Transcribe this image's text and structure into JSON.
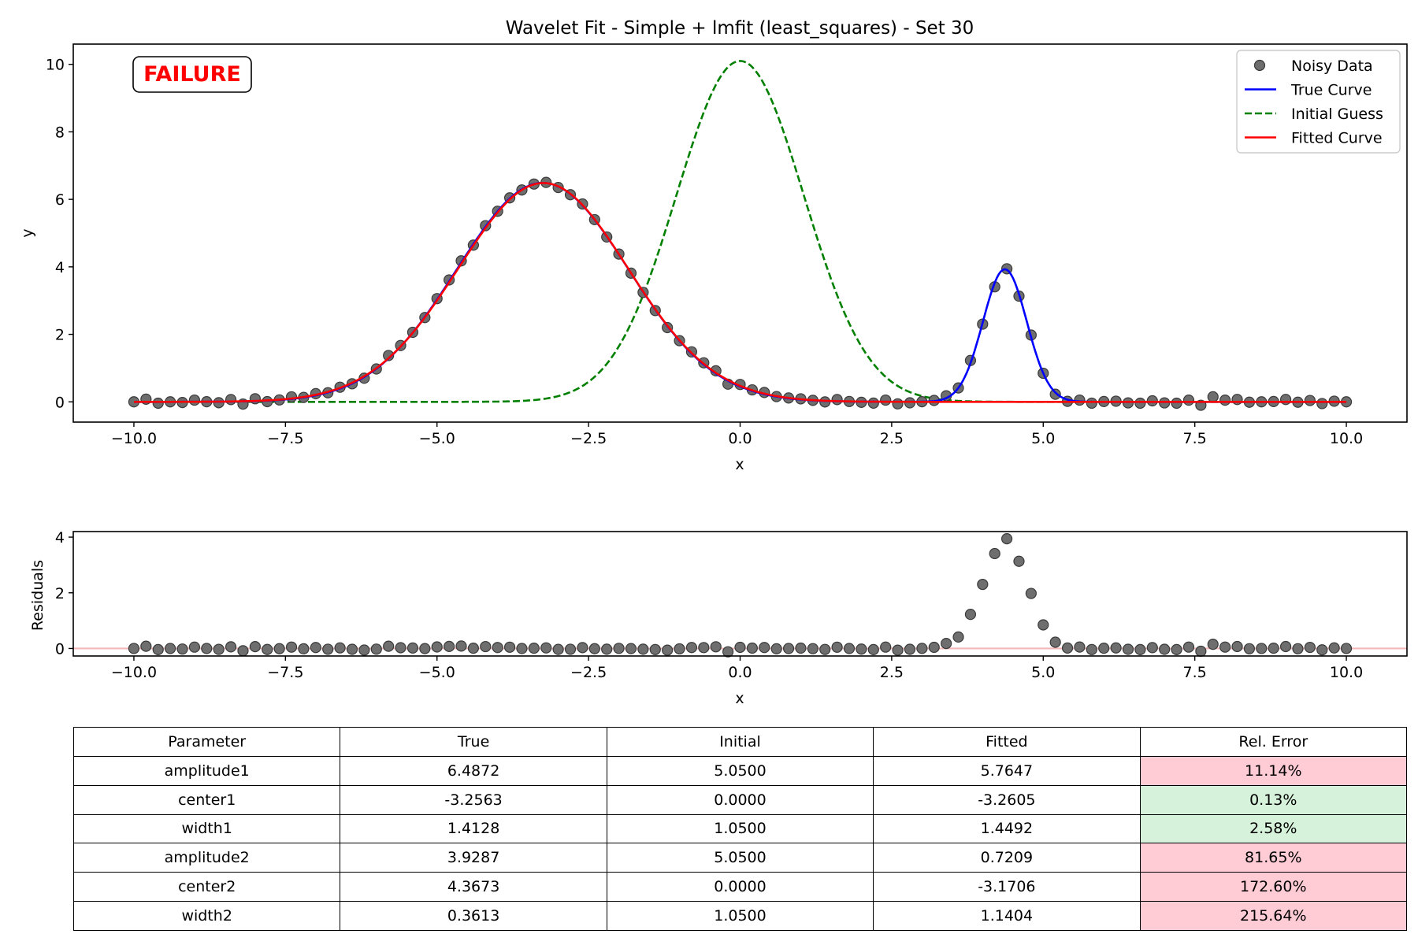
{
  "chart_data": [
    {
      "type": "scatter",
      "title": "Wavelet Fit - Simple + lmfit (least_squares) - Set 30",
      "xlabel": "x",
      "ylabel": "y",
      "xlim": [
        -11.0,
        11.0
      ],
      "ylim": [
        -0.6,
        10.6
      ],
      "xticks": [
        -10.0,
        -7.5,
        -5.0,
        -2.5,
        0.0,
        2.5,
        5.0,
        7.5,
        10.0
      ],
      "xtick_labels": [
        "−10.0",
        "−7.5",
        "−5.0",
        "−2.5",
        "0.0",
        "2.5",
        "5.0",
        "7.5",
        "10.0"
      ],
      "yticks": [
        0,
        2,
        4,
        6,
        8,
        10
      ],
      "ytick_labels": [
        "0",
        "2",
        "4",
        "6",
        "8",
        "10"
      ],
      "legend_position": "top-right",
      "status_badge": "FAILURE",
      "status_color": "#ff0000",
      "series": [
        {
          "name": "Noisy Data",
          "kind": "markers",
          "color": "#6e6e6e",
          "x_range": [
            -10.0,
            10.0
          ],
          "n_points": 101,
          "noise": [
            0.0,
            0.08,
            -0.04,
            0.0,
            -0.02,
            0.05,
            0.0,
            -0.03,
            0.06,
            -0.08,
            0.07,
            -0.03,
            0.0,
            0.06,
            0.0,
            0.05,
            -0.01,
            0.04,
            -0.01,
            -0.04,
            -0.01,
            0.09,
            0.03,
            0.01,
            -0.02,
            0.03,
            0.04,
            0.05,
            -0.03,
            0.03,
            0.0,
            0.02,
            -0.02,
            0.0,
            0.02,
            -0.03,
            -0.02,
            0.04,
            0.0,
            -0.02,
            0.01,
            0.0,
            -0.02,
            -0.03,
            -0.05,
            0.0,
            0.05,
            0.05,
            0.08,
            -0.1,
            0.06,
            0.03,
            0.05,
            0.0,
            0.01,
            0.02,
            0.0,
            -0.03,
            0.05,
            0.0,
            -0.02,
            -0.04,
            0.05,
            -0.06,
            -0.03,
            0.0,
            0.02,
            0.07,
            0.0,
            0.08,
            -0.04,
            -0.12,
            0.03,
            -0.06,
            0.06,
            0.0,
            -0.05,
            -0.05,
            0.04,
            -0.04,
            0.01,
            0.02,
            -0.03,
            -0.04,
            0.03,
            -0.03,
            -0.04,
            0.05,
            -0.1,
            0.15,
            0.05,
            0.07,
            -0.01,
            0.0,
            0.01,
            0.07,
            -0.01,
            0.04,
            -0.05,
            0.02,
            0.0
          ]
        },
        {
          "name": "True Curve",
          "kind": "line",
          "color": "#0000ff",
          "dash": "solid",
          "params": {
            "amplitude1": 6.4872,
            "center1": -3.2563,
            "width1": 1.4128,
            "amplitude2": 3.9287,
            "center2": 4.3673,
            "width2": 0.3613
          }
        },
        {
          "name": "Initial Guess",
          "kind": "line",
          "color": "#008000",
          "dash": "dashed",
          "params": {
            "amplitude1": 5.05,
            "center1": 0.0,
            "width1": 1.05,
            "amplitude2": 5.05,
            "center2": 0.0,
            "width2": 1.05
          }
        },
        {
          "name": "Fitted Curve",
          "kind": "line",
          "color": "#ff0000",
          "dash": "solid",
          "params": {
            "amplitude1": 5.7647,
            "center1": -3.2605,
            "width1": 1.4492,
            "amplitude2": 0.7209,
            "center2": -3.1706,
            "width2": 1.1404
          }
        }
      ]
    },
    {
      "type": "scatter",
      "title": "",
      "xlabel": "x",
      "ylabel": "Residuals",
      "xlim": [
        -11.0,
        11.0
      ],
      "ylim": [
        -0.27,
        4.2
      ],
      "xticks": [
        -10.0,
        -7.5,
        -5.0,
        -2.5,
        0.0,
        2.5,
        5.0,
        7.5,
        10.0
      ],
      "xtick_labels": [
        "−10.0",
        "−7.5",
        "−5.0",
        "−2.5",
        "0.0",
        "2.5",
        "5.0",
        "7.5",
        "10.0"
      ],
      "yticks": [
        0,
        2,
        4
      ],
      "ytick_labels": [
        "0",
        "2",
        "4"
      ],
      "zero_line_color": "#f4b6b6",
      "series": [
        {
          "name": "",
          "kind": "markers",
          "color": "#6e6e6e",
          "definition": "Noisy Data minus Fitted Curve"
        }
      ]
    }
  ],
  "table": {
    "headers": [
      "Parameter",
      "True",
      "Initial",
      "Fitted",
      "Rel. Error"
    ],
    "rows": [
      {
        "param": "amplitude1",
        "true": "6.4872",
        "initial": "5.0500",
        "fitted": "5.7647",
        "rel_error": "11.14%",
        "error_color": "#ffccd5"
      },
      {
        "param": "center1",
        "true": "-3.2563",
        "initial": "0.0000",
        "fitted": "-3.2605",
        "rel_error": "0.13%",
        "error_color": "#d6f2da"
      },
      {
        "param": "width1",
        "true": "1.4128",
        "initial": "1.0500",
        "fitted": "1.4492",
        "rel_error": "2.58%",
        "error_color": "#d6f2da"
      },
      {
        "param": "amplitude2",
        "true": "3.9287",
        "initial": "5.0500",
        "fitted": "0.7209",
        "rel_error": "81.65%",
        "error_color": "#ffccd5"
      },
      {
        "param": "center2",
        "true": "4.3673",
        "initial": "0.0000",
        "fitted": "-3.1706",
        "rel_error": "172.60%",
        "error_color": "#ffccd5"
      },
      {
        "param": "width2",
        "true": "0.3613",
        "initial": "1.0500",
        "fitted": "1.1404",
        "rel_error": "215.64%",
        "error_color": "#ffccd5"
      }
    ]
  }
}
